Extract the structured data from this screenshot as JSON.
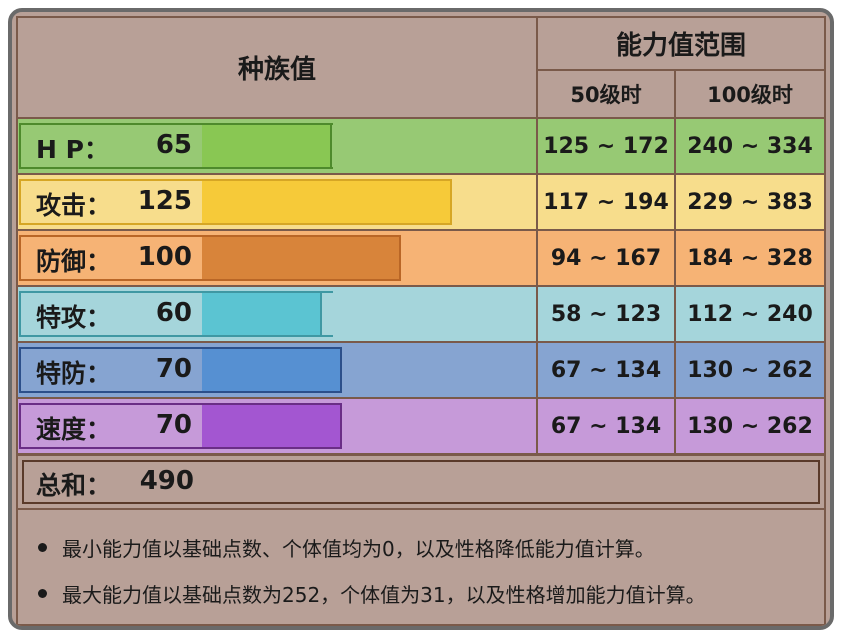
{
  "header": {
    "base_stats_title": "种族值",
    "range_title": "能力值范围",
    "level50_label": "50级时",
    "level100_label": "100级时"
  },
  "stats": [
    {
      "name": "H P：",
      "value": "65",
      "bar_fraction": 0.255,
      "range50": "125 ~ 172",
      "range100": "240 ~ 334",
      "row_color": "#97c974",
      "inner_border": "#4e8a2c",
      "bar_color": "#89c753",
      "range_color": "#97c974"
    },
    {
      "name": "攻击：",
      "value": "125",
      "bar_fraction": 0.49,
      "range50": "117 ~ 194",
      "range100": "229 ~ 383",
      "row_color": "#f7dd8c",
      "inner_border": "#d6a625",
      "bar_color": "#f6ca39",
      "range_color": "#f7dd8c"
    },
    {
      "name": "防御：",
      "value": "100",
      "bar_fraction": 0.39,
      "range50": "94 ~ 167",
      "range100": "184 ~ 328",
      "row_color": "#f6b375",
      "inner_border": "#b96626",
      "bar_color": "#d8843a",
      "range_color": "#f6b375"
    },
    {
      "name": "特攻：",
      "value": "60",
      "bar_fraction": 0.235,
      "range50": "58 ~ 123",
      "range100": "112 ~ 240",
      "row_color": "#a5d5db",
      "inner_border": "#3f98a3",
      "bar_color": "#5bc4d2",
      "range_color": "#a5d5db"
    },
    {
      "name": "特防：",
      "value": "70",
      "bar_fraction": 0.275,
      "range50": "67 ~ 134",
      "range100": "130 ~ 262",
      "row_color": "#86a4d1",
      "inner_border": "#2c4f8a",
      "bar_color": "#5690d2",
      "range_color": "#86a4d1"
    },
    {
      "name": "速度：",
      "value": "70",
      "bar_fraction": 0.275,
      "range50": "67 ~ 134",
      "range100": "130 ~ 262",
      "row_color": "#c69ad9",
      "inner_border": "#6a2e86",
      "bar_color": "#a356d1",
      "range_color": "#c69ad9"
    }
  ],
  "total": {
    "label": "总和：",
    "value": "490"
  },
  "notes": [
    "最小能力值以基础点数、个体值均为0，以及性格降低能力值计算。",
    "最大能力值以基础点数为252，个体值为31，以及性格增加能力值计算。"
  ]
}
